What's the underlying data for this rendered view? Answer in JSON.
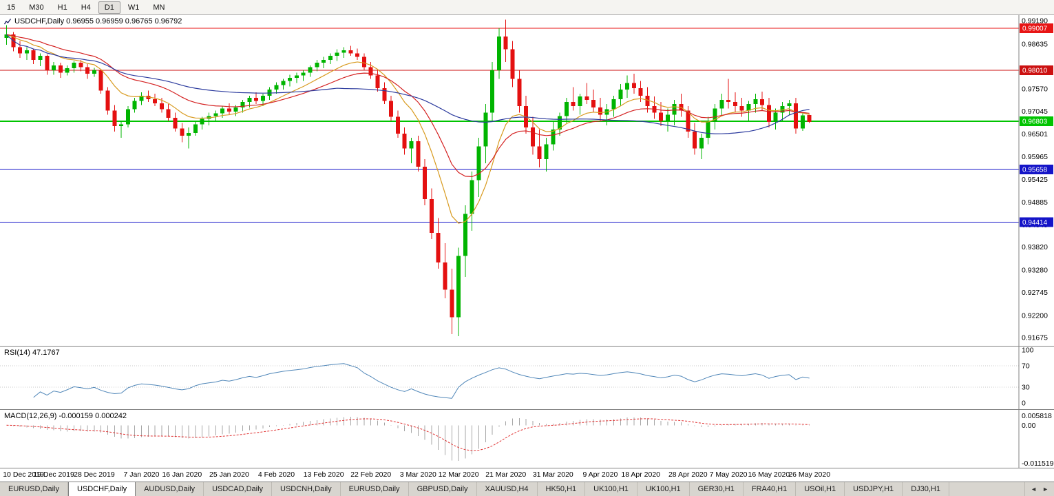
{
  "toolbar": {
    "timeframes": [
      {
        "label": "15",
        "active": false
      },
      {
        "label": "M30",
        "active": false
      },
      {
        "label": "H1",
        "active": false
      },
      {
        "label": "H4",
        "active": false
      },
      {
        "label": "D1",
        "active": true
      },
      {
        "label": "W1",
        "active": false
      },
      {
        "label": "MN",
        "active": false
      }
    ]
  },
  "main_chart": {
    "title": "USDCHF,Daily 0.96955 0.96959 0.96765 0.96792"
  },
  "rsi_panel": {
    "label": "RSI(14) 47.1767",
    "axis_labels": [
      "100",
      "70",
      "30",
      "0"
    ],
    "levels": [
      70,
      30
    ],
    "period": 14
  },
  "macd_panel": {
    "label": "MACD(12,26,9) -0.000159 0.000242",
    "axis_top": "0.005818",
    "axis_zero": "0.00",
    "axis_bottom": "-0.011519",
    "fast": 12,
    "slow": 26,
    "signal": 9
  },
  "chart_data": {
    "type": "candlestick",
    "symbol": "USDCHF",
    "timeframe": "Daily",
    "ohlc": {
      "open": "0.96955",
      "high": "0.96959",
      "low": "0.96765",
      "close": "0.96792"
    },
    "price_axis": {
      "max": 0.9932,
      "min": 0.9148,
      "ticks": [
        "0.99190",
        "0.98635",
        "0.97570",
        "0.97045",
        "0.96501",
        "0.95965",
        "0.95425",
        "0.94885",
        "0.94345",
        "0.93820",
        "0.93280",
        "0.92745",
        "0.92200",
        "0.91675"
      ]
    },
    "hlines": [
      {
        "label": "0.99007",
        "value": 0.99007,
        "color": "#e81515",
        "width": 1
      },
      {
        "label": "0.98010",
        "value": 0.9801,
        "color": "#cc1111",
        "width": 1
      },
      {
        "label": "0.96803",
        "value": 0.96803,
        "color": "#00c400",
        "width": 2
      },
      {
        "label": "0.95658",
        "value": 0.95658,
        "color": "#1414c8",
        "width": 1
      },
      {
        "label": "0.94414",
        "value": 0.94414,
        "color": "#1414c8",
        "width": 1
      }
    ],
    "moving_averages": [
      {
        "period": 10,
        "type": "ema",
        "color": "#d89a1e"
      },
      {
        "period": 21,
        "type": "ema",
        "color": "#d42020"
      },
      {
        "period": 50,
        "type": "sma",
        "color": "#2c3b9e"
      }
    ],
    "x_labels": [
      {
        "label": "10 Dec 2019",
        "bar": 0
      },
      {
        "label": "19 Dec 2019",
        "bar": 7
      },
      {
        "label": "28 Dec 2019",
        "bar": 13
      },
      {
        "label": "7 Jan 2020",
        "bar": 20
      },
      {
        "label": "16 Jan 2020",
        "bar": 26
      },
      {
        "label": "25 Jan 2020",
        "bar": 33
      },
      {
        "label": "4 Feb 2020",
        "bar": 40
      },
      {
        "label": "13 Feb 2020",
        "bar": 47
      },
      {
        "label": "22 Feb 2020",
        "bar": 54
      },
      {
        "label": "3 Mar 2020",
        "bar": 61
      },
      {
        "label": "12 Mar 2020",
        "bar": 67
      },
      {
        "label": "21 Mar 2020",
        "bar": 74
      },
      {
        "label": "31 Mar 2020",
        "bar": 81
      },
      {
        "label": "9 Apr 2020",
        "bar": 88
      },
      {
        "label": "18 Apr 2020",
        "bar": 94
      },
      {
        "label": "28 Apr 2020",
        "bar": 101
      },
      {
        "label": "7 May 2020",
        "bar": 107
      },
      {
        "label": "16 May 2020",
        "bar": 113
      },
      {
        "label": "26 May 2020",
        "bar": 119
      }
    ],
    "candles": [
      [
        0.9878,
        0.9908,
        0.9862,
        0.9886
      ],
      [
        0.9886,
        0.9892,
        0.9846,
        0.9856
      ],
      [
        0.9856,
        0.9871,
        0.9831,
        0.9841
      ],
      [
        0.9841,
        0.9856,
        0.9826,
        0.9849
      ],
      [
        0.9849,
        0.9853,
        0.9816,
        0.9826
      ],
      [
        0.9826,
        0.9841,
        0.9811,
        0.9836
      ],
      [
        0.9836,
        0.9839,
        0.9791,
        0.9801
      ],
      [
        0.9801,
        0.9821,
        0.9791,
        0.9813
      ],
      [
        0.9813,
        0.9819,
        0.9783,
        0.9796
      ],
      [
        0.9796,
        0.9813,
        0.9789,
        0.9806
      ],
      [
        0.9806,
        0.9823,
        0.9796,
        0.9819
      ],
      [
        0.9819,
        0.9826,
        0.9799,
        0.9809
      ],
      [
        0.9809,
        0.9816,
        0.9781,
        0.9793
      ],
      [
        0.9793,
        0.9807,
        0.9786,
        0.9801
      ],
      [
        0.9801,
        0.9804,
        0.9746,
        0.9753
      ],
      [
        0.9753,
        0.9761,
        0.9696,
        0.9706
      ],
      [
        0.9706,
        0.9719,
        0.9656,
        0.9669
      ],
      [
        0.9669,
        0.9681,
        0.9641,
        0.9673
      ],
      [
        0.9673,
        0.9716,
        0.9666,
        0.9709
      ],
      [
        0.9709,
        0.9736,
        0.9701,
        0.9729
      ],
      [
        0.9729,
        0.9749,
        0.9719,
        0.9741
      ],
      [
        0.9741,
        0.9753,
        0.9726,
        0.9733
      ],
      [
        0.9733,
        0.9746,
        0.9716,
        0.9723
      ],
      [
        0.9723,
        0.9736,
        0.9701,
        0.9709
      ],
      [
        0.9709,
        0.9721,
        0.9681,
        0.9689
      ],
      [
        0.9689,
        0.9701,
        0.9656,
        0.9663
      ],
      [
        0.9663,
        0.9676,
        0.9631,
        0.9646
      ],
      [
        0.9646,
        0.9666,
        0.9616,
        0.9653
      ],
      [
        0.9653,
        0.9681,
        0.9646,
        0.9673
      ],
      [
        0.9673,
        0.9691,
        0.9661,
        0.9686
      ],
      [
        0.9686,
        0.9701,
        0.9671,
        0.9693
      ],
      [
        0.9693,
        0.9706,
        0.9681,
        0.9699
      ],
      [
        0.9699,
        0.9716,
        0.9689,
        0.9711
      ],
      [
        0.9711,
        0.9723,
        0.9696,
        0.9703
      ],
      [
        0.9703,
        0.9719,
        0.9693,
        0.9713
      ],
      [
        0.9713,
        0.9731,
        0.9701,
        0.9726
      ],
      [
        0.9726,
        0.9741,
        0.9713,
        0.9736
      ],
      [
        0.9736,
        0.9749,
        0.9721,
        0.9729
      ],
      [
        0.9729,
        0.9746,
        0.9716,
        0.9741
      ],
      [
        0.9741,
        0.9761,
        0.9731,
        0.9756
      ],
      [
        0.9756,
        0.9773,
        0.9746,
        0.9766
      ],
      [
        0.9766,
        0.9781,
        0.9756,
        0.9776
      ],
      [
        0.9776,
        0.9791,
        0.9763,
        0.9783
      ],
      [
        0.9783,
        0.9796,
        0.9771,
        0.9789
      ],
      [
        0.9789,
        0.9801,
        0.9776,
        0.9796
      ],
      [
        0.9796,
        0.9813,
        0.9786,
        0.9809
      ],
      [
        0.9809,
        0.9826,
        0.9799,
        0.9819
      ],
      [
        0.9819,
        0.9833,
        0.9806,
        0.9826
      ],
      [
        0.9826,
        0.9841,
        0.9816,
        0.9836
      ],
      [
        0.9836,
        0.9851,
        0.9823,
        0.9843
      ],
      [
        0.9843,
        0.9856,
        0.9831,
        0.9849
      ],
      [
        0.9849,
        0.9859,
        0.9836,
        0.9841
      ],
      [
        0.9841,
        0.9853,
        0.9826,
        0.9833
      ],
      [
        0.9833,
        0.9841,
        0.9801,
        0.9809
      ],
      [
        0.9809,
        0.9821,
        0.9781,
        0.9789
      ],
      [
        0.9789,
        0.9801,
        0.9751,
        0.9759
      ],
      [
        0.9759,
        0.9773,
        0.9721,
        0.9729
      ],
      [
        0.9729,
        0.9741,
        0.9681,
        0.9691
      ],
      [
        0.9691,
        0.9706,
        0.9641,
        0.9651
      ],
      [
        0.9651,
        0.9666,
        0.9601,
        0.9616
      ],
      [
        0.9616,
        0.9641,
        0.9581,
        0.9633
      ],
      [
        0.9633,
        0.9646,
        0.9561,
        0.9573
      ],
      [
        0.9573,
        0.9591,
        0.9481,
        0.9496
      ],
      [
        0.9496,
        0.9521,
        0.9401,
        0.9416
      ],
      [
        0.9416,
        0.9451,
        0.9331,
        0.9346
      ],
      [
        0.9346,
        0.9391,
        0.9261,
        0.9281
      ],
      [
        0.9281,
        0.9331,
        0.9176,
        0.9216
      ],
      [
        0.9216,
        0.9381,
        0.9171,
        0.9361
      ],
      [
        0.9361,
        0.9481,
        0.9311,
        0.9461
      ],
      [
        0.9461,
        0.9561,
        0.9421,
        0.9541
      ],
      [
        0.9541,
        0.9641,
        0.9501,
        0.9621
      ],
      [
        0.9621,
        0.9721,
        0.9581,
        0.9701
      ],
      [
        0.9701,
        0.9821,
        0.9681,
        0.9801
      ],
      [
        0.9801,
        0.9901,
        0.9781,
        0.9881
      ],
      [
        0.9881,
        0.9921,
        0.9821,
        0.9851
      ],
      [
        0.9851,
        0.9871,
        0.9761,
        0.9781
      ],
      [
        0.9781,
        0.9801,
        0.9701,
        0.9716
      ],
      [
        0.9716,
        0.9741,
        0.9651,
        0.9666
      ],
      [
        0.9666,
        0.9691,
        0.9601,
        0.9621
      ],
      [
        0.9621,
        0.9661,
        0.9571,
        0.9591
      ],
      [
        0.9591,
        0.9641,
        0.9561,
        0.9626
      ],
      [
        0.9626,
        0.9681,
        0.9611,
        0.9661
      ],
      [
        0.9661,
        0.9701,
        0.9646,
        0.9693
      ],
      [
        0.9693,
        0.9736,
        0.9676,
        0.9726
      ],
      [
        0.9726,
        0.9761,
        0.9706,
        0.9716
      ],
      [
        0.9716,
        0.9746,
        0.9696,
        0.9739
      ],
      [
        0.9739,
        0.9771,
        0.9721,
        0.9731
      ],
      [
        0.9731,
        0.9756,
        0.9701,
        0.9713
      ],
      [
        0.9713,
        0.9736,
        0.9681,
        0.9696
      ],
      [
        0.9696,
        0.9721,
        0.9671,
        0.9709
      ],
      [
        0.9709,
        0.9741,
        0.9691,
        0.9733
      ],
      [
        0.9733,
        0.9769,
        0.9716,
        0.9756
      ],
      [
        0.9756,
        0.9789,
        0.9736,
        0.9771
      ],
      [
        0.9771,
        0.9793,
        0.9746,
        0.9759
      ],
      [
        0.9759,
        0.9776,
        0.9726,
        0.9741
      ],
      [
        0.9741,
        0.9761,
        0.9701,
        0.9716
      ],
      [
        0.9716,
        0.9739,
        0.9686,
        0.9701
      ],
      [
        0.9701,
        0.9726,
        0.9669,
        0.9681
      ],
      [
        0.9681,
        0.9711,
        0.9656,
        0.9696
      ],
      [
        0.9696,
        0.9731,
        0.9671,
        0.9721
      ],
      [
        0.9721,
        0.9746,
        0.9691,
        0.9706
      ],
      [
        0.9706,
        0.9716,
        0.9641,
        0.9656
      ],
      [
        0.9656,
        0.9676,
        0.9601,
        0.9616
      ],
      [
        0.9616,
        0.9651,
        0.9591,
        0.9641
      ],
      [
        0.9641,
        0.9691,
        0.9626,
        0.9679
      ],
      [
        0.9679,
        0.9721,
        0.9661,
        0.9711
      ],
      [
        0.9711,
        0.9746,
        0.9693,
        0.9731
      ],
      [
        0.9731,
        0.9781,
        0.9711,
        0.9726
      ],
      [
        0.9726,
        0.9749,
        0.9701,
        0.9716
      ],
      [
        0.9716,
        0.9736,
        0.9691,
        0.9706
      ],
      [
        0.9706,
        0.9729,
        0.9681,
        0.9721
      ],
      [
        0.9721,
        0.9746,
        0.9701,
        0.9733
      ],
      [
        0.9733,
        0.9751,
        0.9706,
        0.9719
      ],
      [
        0.9719,
        0.9736,
        0.9666,
        0.9679
      ],
      [
        0.9679,
        0.9711,
        0.9661,
        0.9701
      ],
      [
        0.9701,
        0.9726,
        0.9681,
        0.9716
      ],
      [
        0.9716,
        0.9731,
        0.9694,
        0.9723
      ],
      [
        0.9723,
        0.9736,
        0.9651,
        0.9663
      ],
      [
        0.9663,
        0.9699,
        0.9658,
        0.9694
      ],
      [
        0.96955,
        0.96959,
        0.96765,
        0.96792
      ]
    ]
  },
  "tabbar": {
    "tabs": [
      {
        "label": "EURUSD,Daily",
        "active": false
      },
      {
        "label": "USDCHF,Daily",
        "active": true
      },
      {
        "label": "AUDUSD,Daily",
        "active": false
      },
      {
        "label": "USDCAD,Daily",
        "active": false
      },
      {
        "label": "USDCNH,Daily",
        "active": false
      },
      {
        "label": "EURUSD,Daily",
        "active": false
      },
      {
        "label": "GBPUSD,Daily",
        "active": false
      },
      {
        "label": "XAUUSD,H4",
        "active": false
      },
      {
        "label": "HK50,H1",
        "active": false
      },
      {
        "label": "UK100,H1",
        "active": false
      },
      {
        "label": "UK100,H1",
        "active": false
      },
      {
        "label": "GER30,H1",
        "active": false
      },
      {
        "label": "FRA40,H1",
        "active": false
      },
      {
        "label": "USOil,H1",
        "active": false
      },
      {
        "label": "USDJPY,H1",
        "active": false
      },
      {
        "label": "DJ30,H1",
        "active": false
      }
    ],
    "scroll_left_icon": "◄",
    "scroll_right_icon": "►"
  },
  "colors": {
    "bull": "#00b400",
    "bear": "#e41010",
    "rsi_line": "#4f86b8",
    "macd_hist": "#a6a6a6",
    "macd_signal": "#e03030",
    "grid_level": "#c8c8c8",
    "axis_border": "#808080"
  }
}
